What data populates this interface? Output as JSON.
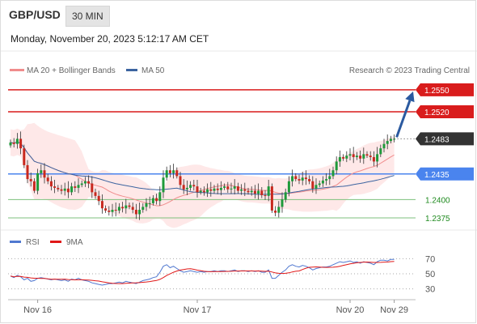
{
  "header": {
    "symbol": "GBP/USD",
    "interval": "30 MIN",
    "datetime": "Monday, November 20, 2023 5:12:17 AM CET",
    "copyright": "Research © 2023 Trading Central"
  },
  "legend": {
    "ma20": "MA 20 + Bollinger Bands",
    "ma50": "MA 50",
    "rsi": "RSI",
    "rsi_ma": "9MA"
  },
  "colors": {
    "up": "#1e9a3a",
    "down": "#c8281e",
    "ma20": "#f08c8c",
    "ma50": "#3c64a0",
    "band": "#fde0e0",
    "resistance": "#d91c1c",
    "pivot": "#4a84ee",
    "support": "#7dc07d",
    "last": "#333333",
    "arrow": "#2b5aa0",
    "rsi": "#5078d0",
    "rsi_ma": "#e01818"
  },
  "price_levels": [
    {
      "label": "1.2550",
      "value": 1.255,
      "kind": "resistance"
    },
    {
      "label": "1.2520",
      "value": 1.252,
      "kind": "resistance"
    },
    {
      "label": "1.2483",
      "value": 1.2483,
      "kind": "last"
    },
    {
      "label": "1.2435",
      "value": 1.2435,
      "kind": "pivot"
    },
    {
      "label": "1.2400",
      "value": 1.24,
      "kind": "support"
    },
    {
      "label": "1.2375",
      "value": 1.2375,
      "kind": "support"
    }
  ],
  "rsi_levels": [
    {
      "label": "70",
      "value": 70
    },
    {
      "label": "50",
      "value": 50
    },
    {
      "label": "30",
      "value": 30
    }
  ],
  "x_labels": [
    {
      "label": "Nov 16",
      "index": 8
    },
    {
      "label": "Nov 17",
      "index": 55
    },
    {
      "label": "Nov 20",
      "index": 100
    },
    {
      "label": "Nov 29",
      "index": 113
    }
  ],
  "chart_data": {
    "type": "candlestick",
    "y_range": [
      1.2365,
      1.2562
    ],
    "rsi_range": [
      20,
      80
    ],
    "candle_count": 114,
    "projection": {
      "from": 1.2483,
      "to": 1.255
    },
    "closes": [
      1.2478,
      1.2476,
      1.2483,
      1.247,
      1.2447,
      1.2428,
      1.2425,
      1.2412,
      1.2436,
      1.244,
      1.243,
      1.2425,
      1.2418,
      1.2416,
      1.2414,
      1.2412,
      1.2415,
      1.241,
      1.2418,
      1.2416,
      1.242,
      1.2422,
      1.2425,
      1.2422,
      1.241,
      1.2405,
      1.2398,
      1.2388,
      1.2385,
      1.2383,
      1.2386,
      1.2385,
      1.239,
      1.2388,
      1.2392,
      1.239,
      1.2386,
      1.238,
      1.2386,
      1.239,
      1.2395,
      1.2395,
      1.2402,
      1.2398,
      1.241,
      1.243,
      1.244,
      1.2436,
      1.244,
      1.2432,
      1.242,
      1.2414,
      1.2416,
      1.242,
      1.2418,
      1.241,
      1.2412,
      1.241,
      1.2414,
      1.2412,
      1.2415,
      1.2413,
      1.2416,
      1.2418,
      1.2414,
      1.2415,
      1.2418,
      1.2412,
      1.2414,
      1.2412,
      1.241,
      1.2412,
      1.2408,
      1.2412,
      1.2406,
      1.2405,
      1.2418,
      1.2385,
      1.2382,
      1.239,
      1.24,
      1.241,
      1.2425,
      1.2432,
      1.2428,
      1.2426,
      1.243,
      1.2428,
      1.2425,
      1.2415,
      1.242,
      1.2422,
      1.2426,
      1.2428,
      1.2432,
      1.244,
      1.2452,
      1.2458,
      1.2456,
      1.246,
      1.2462,
      1.2458,
      1.246,
      1.2456,
      1.2462,
      1.246,
      1.2458,
      1.2452,
      1.2462,
      1.247,
      1.2476,
      1.248,
      1.2483,
      1.2483
    ],
    "rsi": [
      47,
      45,
      48,
      46,
      42,
      44,
      40,
      41,
      44,
      45,
      44,
      43,
      42,
      43,
      42,
      41,
      42,
      40,
      43,
      42,
      44,
      42,
      41,
      40,
      38,
      37,
      36,
      35,
      36,
      37,
      37,
      38,
      39,
      38,
      40,
      39,
      38,
      37,
      39,
      41,
      42,
      43,
      45,
      46,
      52,
      60,
      62,
      58,
      60,
      57,
      54,
      52,
      53,
      54,
      53,
      52,
      53,
      52,
      53,
      53,
      54,
      53,
      54,
      54,
      53,
      54,
      55,
      53,
      54,
      54,
      53,
      54,
      53,
      54,
      52,
      52,
      55,
      44,
      44,
      48,
      52,
      55,
      60,
      62,
      60,
      59,
      61,
      60,
      58,
      55,
      57,
      58,
      59,
      59,
      60,
      62,
      64,
      66,
      65,
      66,
      67,
      65,
      66,
      64,
      66,
      65,
      64,
      62,
      66,
      68,
      68,
      67,
      69,
      69
    ]
  }
}
